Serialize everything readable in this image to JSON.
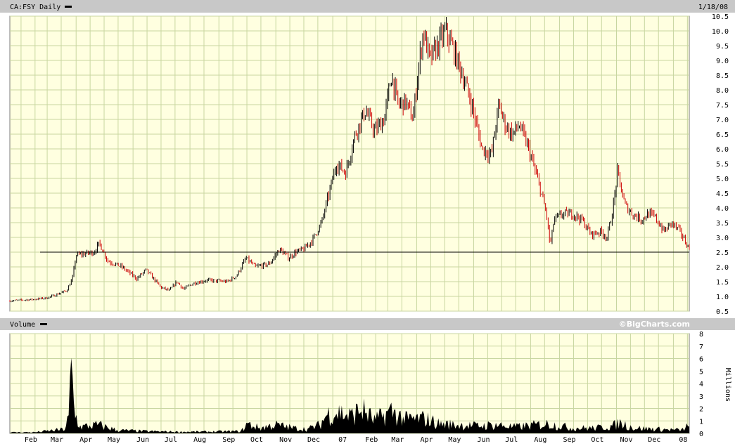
{
  "header": {
    "symbol_label": "CA:FSY Daily",
    "date_label": "1/18/08"
  },
  "volume_panel": {
    "label": "Volume",
    "credit": "©BigCharts.com",
    "unit_label": "Millions"
  },
  "colors": {
    "plot_bg": "#ffffe0",
    "grid": "#c8d6a0",
    "header_bar": "#c8c8c8",
    "up_bar": "#000000",
    "down_bar": "#cc0000",
    "volume_fill": "#000000"
  },
  "chart_data": [
    {
      "type": "ohlc",
      "title": "CA:FSY Daily",
      "x_months": [
        "Feb",
        "Mar",
        "Apr",
        "May",
        "Jun",
        "Jul",
        "Aug",
        "Sep",
        "Oct",
        "Nov",
        "Dec",
        "07",
        "Feb",
        "Mar",
        "Apr",
        "May",
        "Jun",
        "Jul",
        "Aug",
        "Sep",
        "Oct",
        "Nov",
        "Dec",
        "08"
      ],
      "x_range": [
        "2006-01-20",
        "2008-01-18"
      ],
      "y_ticks": [
        0.5,
        1.0,
        1.5,
        2.0,
        2.5,
        3.0,
        3.5,
        4.0,
        4.5,
        5.0,
        5.5,
        6.0,
        6.5,
        7.0,
        7.5,
        8.0,
        8.5,
        9.0,
        9.5,
        10.0,
        10.5
      ],
      "ylim": [
        0.5,
        10.5
      ],
      "grid": true,
      "horizontal_line": 2.5,
      "close_path": [
        [
          "2006-01-20",
          0.85
        ],
        [
          "2006-02-15",
          0.9
        ],
        [
          "2006-03-01",
          0.95
        ],
        [
          "2006-03-10",
          1.05
        ],
        [
          "2006-03-22",
          1.2
        ],
        [
          "2006-03-28",
          1.6
        ],
        [
          "2006-04-01",
          2.4
        ],
        [
          "2006-04-10",
          2.45
        ],
        [
          "2006-04-20",
          2.5
        ],
        [
          "2006-04-26",
          2.8
        ],
        [
          "2006-05-05",
          2.2
        ],
        [
          "2006-05-20",
          2.0
        ],
        [
          "2006-06-05",
          1.6
        ],
        [
          "2006-06-15",
          1.9
        ],
        [
          "2006-07-01",
          1.3
        ],
        [
          "2006-07-10",
          1.2
        ],
        [
          "2006-07-18",
          1.5
        ],
        [
          "2006-07-25",
          1.25
        ],
        [
          "2006-08-05",
          1.45
        ],
        [
          "2006-08-20",
          1.55
        ],
        [
          "2006-09-10",
          1.5
        ],
        [
          "2006-09-20",
          1.7
        ],
        [
          "2006-09-30",
          2.3
        ],
        [
          "2006-10-10",
          2.0
        ],
        [
          "2006-10-25",
          2.1
        ],
        [
          "2006-11-05",
          2.6
        ],
        [
          "2006-11-15",
          2.3
        ],
        [
          "2006-11-22",
          2.5
        ],
        [
          "2006-12-01",
          2.6
        ],
        [
          "2006-12-10",
          2.9
        ],
        [
          "2006-12-20",
          3.5
        ],
        [
          "2006-12-28",
          4.5
        ],
        [
          "2007-01-05",
          5.5
        ],
        [
          "2007-01-15",
          5.2
        ],
        [
          "2007-01-25",
          6.5
        ],
        [
          "2007-02-05",
          7.3
        ],
        [
          "2007-02-15",
          6.6
        ],
        [
          "2007-02-25",
          7.0
        ],
        [
          "2007-03-05",
          8.5
        ],
        [
          "2007-03-12",
          7.5
        ],
        [
          "2007-03-20",
          7.6
        ],
        [
          "2007-03-28",
          7.0
        ],
        [
          "2007-04-02",
          8.5
        ],
        [
          "2007-04-08",
          10.0
        ],
        [
          "2007-04-15",
          9.0
        ],
        [
          "2007-04-25",
          9.6
        ],
        [
          "2007-05-02",
          10.0
        ],
        [
          "2007-05-10",
          9.4
        ],
        [
          "2007-05-20",
          8.5
        ],
        [
          "2007-05-30",
          7.5
        ],
        [
          "2007-06-10",
          6.0
        ],
        [
          "2007-06-20",
          5.8
        ],
        [
          "2007-06-28",
          7.5
        ],
        [
          "2007-07-05",
          6.8
        ],
        [
          "2007-07-12",
          6.5
        ],
        [
          "2007-07-20",
          6.8
        ],
        [
          "2007-07-30",
          6.0
        ],
        [
          "2007-08-10",
          4.8
        ],
        [
          "2007-08-18",
          3.8
        ],
        [
          "2007-08-22",
          2.7
        ],
        [
          "2007-08-26",
          3.6
        ],
        [
          "2007-09-05",
          3.8
        ],
        [
          "2007-09-15",
          3.8
        ],
        [
          "2007-09-25",
          3.6
        ],
        [
          "2007-10-05",
          3.1
        ],
        [
          "2007-10-15",
          3.2
        ],
        [
          "2007-10-22",
          3.0
        ],
        [
          "2007-10-28",
          3.9
        ],
        [
          "2007-11-02",
          5.2
        ],
        [
          "2007-11-10",
          4.1
        ],
        [
          "2007-11-18",
          3.8
        ],
        [
          "2007-11-28",
          3.6
        ],
        [
          "2007-12-05",
          3.8
        ],
        [
          "2007-12-12",
          3.7
        ],
        [
          "2007-12-22",
          3.2
        ],
        [
          "2007-12-30",
          3.5
        ],
        [
          "2008-01-08",
          3.2
        ],
        [
          "2008-01-18",
          2.6
        ]
      ]
    },
    {
      "type": "area",
      "title": "Volume",
      "ylabel": "Millions",
      "y_ticks": [
        0,
        1,
        2,
        3,
        4,
        5,
        6,
        7,
        8
      ],
      "ylim": [
        0,
        8
      ],
      "grid": true,
      "volume_path": [
        [
          "2006-01-20",
          0.1
        ],
        [
          "2006-02-15",
          0.1
        ],
        [
          "2006-03-10",
          0.3
        ],
        [
          "2006-03-20",
          0.4
        ],
        [
          "2006-03-24",
          1.5
        ],
        [
          "2006-03-27",
          6.3
        ],
        [
          "2006-03-30",
          2.0
        ],
        [
          "2006-04-05",
          0.6
        ],
        [
          "2006-04-25",
          0.8
        ],
        [
          "2006-05-15",
          0.3
        ],
        [
          "2006-06-15",
          0.2
        ],
        [
          "2006-07-15",
          0.15
        ],
        [
          "2006-08-15",
          0.15
        ],
        [
          "2006-09-25",
          0.2
        ],
        [
          "2006-10-01",
          0.9
        ],
        [
          "2006-10-15",
          0.5
        ],
        [
          "2006-11-01",
          0.8
        ],
        [
          "2006-11-20",
          0.5
        ],
        [
          "2006-12-05",
          0.4
        ],
        [
          "2006-12-18",
          0.8
        ],
        [
          "2006-12-26",
          1.8
        ],
        [
          "2007-01-08",
          2.0
        ],
        [
          "2007-01-20",
          1.6
        ],
        [
          "2007-02-01",
          2.3
        ],
        [
          "2007-02-15",
          1.2
        ],
        [
          "2007-03-05",
          2.1
        ],
        [
          "2007-03-20",
          1.3
        ],
        [
          "2007-04-10",
          1.4
        ],
        [
          "2007-04-25",
          0.9
        ],
        [
          "2007-05-15",
          0.8
        ],
        [
          "2007-06-05",
          0.7
        ],
        [
          "2007-06-25",
          0.8
        ],
        [
          "2007-07-15",
          0.6
        ],
        [
          "2007-08-20",
          0.9
        ],
        [
          "2007-09-15",
          0.5
        ],
        [
          "2007-10-10",
          0.5
        ],
        [
          "2007-10-28",
          0.7
        ],
        [
          "2007-11-05",
          1.0
        ],
        [
          "2007-11-20",
          0.5
        ],
        [
          "2007-12-15",
          0.4
        ],
        [
          "2008-01-10",
          0.3
        ],
        [
          "2008-01-16",
          0.7
        ],
        [
          "2008-01-18",
          0.4
        ]
      ]
    }
  ]
}
